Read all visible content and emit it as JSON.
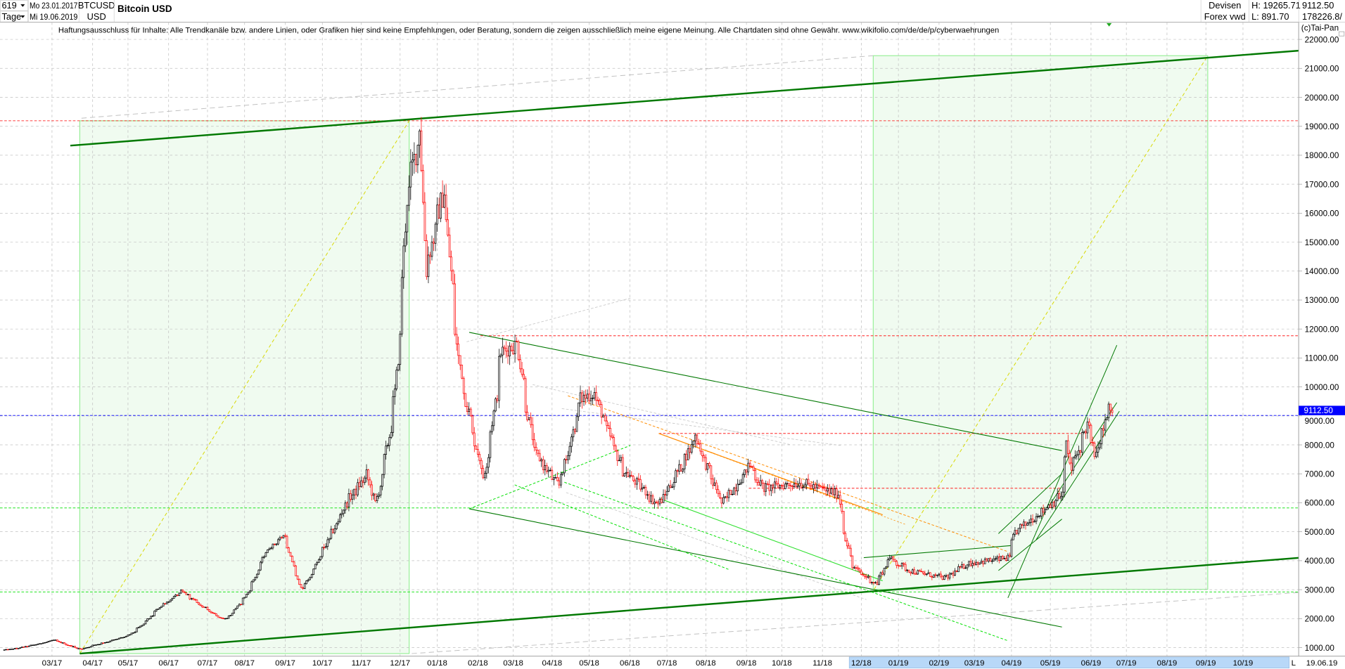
{
  "header": {
    "period_count": "619",
    "period_unit": "Tage",
    "start_date": "Mo 23.01.2017",
    "end_date": "Mi 19.06.2019",
    "symbol": "BTCUSD",
    "currency": "USD",
    "title": "Bitcoin USD",
    "market": "Devisen",
    "source": "Forex vwd",
    "high": "H: 19265.71",
    "low": "L: 891.70",
    "last": "9112.50",
    "volume": "178226.8/"
  },
  "disclaimer": "Haftungsausschluss für Inhalte: Alle Trendkanäle bzw. andere Linien, oder Grafiken hier sind keine Empfehlungen, oder Beratung, sondern die zeigen ausschließlich meine eigene Meinung. Alle Chartdaten sind ohne Gewähr.  www.wikifolio.com/de/de/p/cyberwaehrungen",
  "copyright": "(c)Tai-Pan",
  "colors": {
    "up_candle": "#000000",
    "down_candle": "#ff0000",
    "last_price": "#0000ff",
    "trend_dark": "#007800",
    "trend_light": "#00e000",
    "box_fill": "#f0fbf0",
    "box_stroke": "#90ee90",
    "resistance": "#ff0000",
    "projection": "#d8d800",
    "fan": "#ff8c00",
    "axis_highlight": "#b8d8f8",
    "grid": "#c0c0c0"
  },
  "chart_data": {
    "type": "candlestick",
    "title": "Bitcoin USD",
    "ylim": [
      1000,
      22000
    ],
    "y_scale": "linear",
    "grid": true,
    "y_ticks": [
      "22000.00",
      "21000.00",
      "20000.00",
      "19000.00",
      "18000.00",
      "17000.00",
      "16000.00",
      "15000.00",
      "14000.00",
      "13000.00",
      "12000.00",
      "11000.00",
      "10000.00",
      "9000.00",
      "8000.00",
      "7000.00",
      "6000.00",
      "5000.00",
      "4000.00",
      "3000.00",
      "2000.00",
      "1000.00"
    ],
    "x_ticks": [
      "03/17",
      "04/17",
      "05/17",
      "06/17",
      "07/17",
      "08/17",
      "09/17",
      "10/17",
      "11/17",
      "12/17",
      "01/18",
      "02/18",
      "03/18",
      "04/18",
      "05/18",
      "06/18",
      "07/18",
      "08/18",
      "09/18",
      "10/18",
      "11/18",
      "12/18",
      "01/19",
      "02/19",
      "03/19",
      "04/19",
      "05/19",
      "06/19",
      "07/19",
      "08/19",
      "09/19",
      "10/19"
    ],
    "scale_mode_label": "L",
    "end_label": "19.06.19",
    "last_price_label": "9112.50",
    "last_price": 9112.5,
    "period_high": 19265.71,
    "period_low": 891.7,
    "close_path": [
      [
        "2017-01-23",
        920
      ],
      [
        "2017-02-01",
        970
      ],
      [
        "2017-03-03",
        1260
      ],
      [
        "2017-03-24",
        940
      ],
      [
        "2017-04-03",
        1080
      ],
      [
        "2017-05-01",
        1420
      ],
      [
        "2017-05-25",
        2400
      ],
      [
        "2017-06-12",
        2950
      ],
      [
        "2017-07-16",
        1950
      ],
      [
        "2017-08-01",
        2750
      ],
      [
        "2017-08-17",
        4300
      ],
      [
        "2017-09-01",
        4900
      ],
      [
        "2017-09-15",
        3000
      ],
      [
        "2017-10-02",
        4400
      ],
      [
        "2017-10-20",
        6000
      ],
      [
        "2017-11-06",
        7000
      ],
      [
        "2017-11-12",
        5800
      ],
      [
        "2017-11-28",
        9800
      ],
      [
        "2017-12-07",
        16500
      ],
      [
        "2017-12-18",
        19100
      ],
      [
        "2017-12-22",
        14000
      ],
      [
        "2018-01-06",
        17000
      ],
      [
        "2018-01-17",
        11000
      ],
      [
        "2018-02-06",
        6900
      ],
      [
        "2018-02-20",
        11200
      ],
      [
        "2018-03-05",
        11500
      ],
      [
        "2018-03-18",
        7800
      ],
      [
        "2018-04-06",
        6600
      ],
      [
        "2018-04-24",
        9600
      ],
      [
        "2018-05-05",
        9800
      ],
      [
        "2018-05-28",
        7100
      ],
      [
        "2018-06-12",
        6500
      ],
      [
        "2018-06-24",
        5900
      ],
      [
        "2018-07-24",
        8300
      ],
      [
        "2018-08-14",
        6000
      ],
      [
        "2018-09-05",
        7300
      ],
      [
        "2018-09-15",
        6500
      ],
      [
        "2018-10-15",
        6700
      ],
      [
        "2018-11-14",
        6300
      ],
      [
        "2018-11-25",
        3800
      ],
      [
        "2018-12-14",
        3200
      ],
      [
        "2018-12-24",
        4100
      ],
      [
        "2019-01-10",
        3650
      ],
      [
        "2019-02-07",
        3400
      ],
      [
        "2019-02-24",
        3900
      ],
      [
        "2019-03-29",
        4100
      ],
      [
        "2019-04-03",
        5000
      ],
      [
        "2019-05-10",
        6300
      ],
      [
        "2019-05-14",
        8000
      ],
      [
        "2019-05-17",
        7100
      ],
      [
        "2019-05-30",
        8700
      ],
      [
        "2019-06-06",
        7600
      ],
      [
        "2019-06-16",
        9300
      ],
      [
        "2019-06-19",
        9112.5
      ]
    ]
  }
}
